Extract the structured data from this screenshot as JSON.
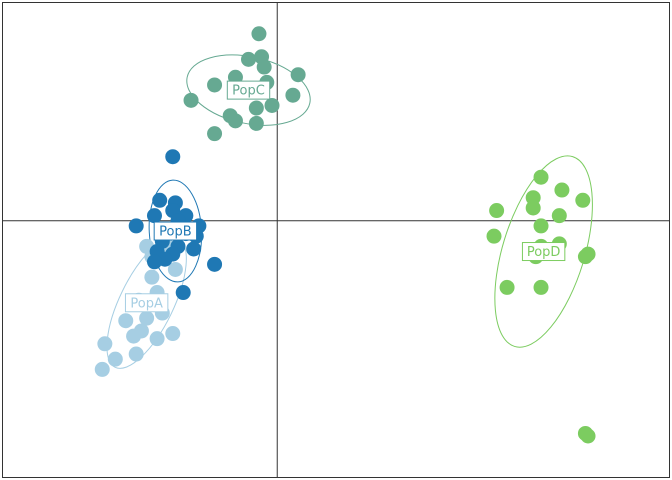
{
  "chart_data": {
    "type": "scatter",
    "title": "",
    "xlabel": "",
    "ylabel": "",
    "xlim": [
      -10.5,
      15.0
    ],
    "ylim": [
      -10.0,
      8.5
    ],
    "grid": false,
    "axes_lines_through_origin": true,
    "series": [
      {
        "name": "PopA",
        "color": "#a6cee3",
        "label_position": [
          -5.0,
          -3.2
        ],
        "ellipse": {
          "center": [
            -5.0,
            -3.2
          ],
          "rx": 2.75,
          "ry": 1.05,
          "angle_deg": 64
        },
        "points": [
          [
            -5.0,
            -1.0
          ],
          [
            -4.8,
            -1.4
          ],
          [
            -4.2,
            -1.0
          ],
          [
            -3.9,
            -1.9
          ],
          [
            -4.8,
            -2.2
          ],
          [
            -4.6,
            -2.8
          ],
          [
            -5.3,
            -3.1
          ],
          [
            -4.4,
            -3.6
          ],
          [
            -5.0,
            -3.8
          ],
          [
            -5.8,
            -3.9
          ],
          [
            -5.2,
            -4.3
          ],
          [
            -4.6,
            -4.6
          ],
          [
            -4.0,
            -4.4
          ],
          [
            -6.6,
            -4.8
          ],
          [
            -5.5,
            -4.5
          ],
          [
            -6.2,
            -5.4
          ],
          [
            -5.4,
            -5.2
          ],
          [
            -6.7,
            -5.8
          ]
        ]
      },
      {
        "name": "PopB",
        "color": "#1f78b4",
        "label_position": [
          -3.9,
          -0.4
        ],
        "ellipse": {
          "center": [
            -3.9,
            -0.4
          ],
          "rx": 1.95,
          "ry": 1.02,
          "angle_deg": -87
        },
        "points": [
          [
            -4.0,
            2.5
          ],
          [
            -4.5,
            0.8
          ],
          [
            -3.9,
            0.7
          ],
          [
            -4.0,
            0.4
          ],
          [
            -3.5,
            0.2
          ],
          [
            -4.7,
            0.2
          ],
          [
            -3.8,
            0.0
          ],
          [
            -5.4,
            -0.2
          ],
          [
            -3.0,
            -0.2
          ],
          [
            -4.4,
            -0.4
          ],
          [
            -3.5,
            -0.5
          ],
          [
            -3.1,
            -0.6
          ],
          [
            -4.4,
            -0.8
          ],
          [
            -3.8,
            -1.0
          ],
          [
            -4.0,
            -1.3
          ],
          [
            -4.6,
            -1.2
          ],
          [
            -3.2,
            -1.1
          ],
          [
            -4.3,
            -1.5
          ],
          [
            -4.7,
            -1.6
          ],
          [
            -2.4,
            -1.7
          ],
          [
            -3.6,
            -2.8
          ]
        ]
      },
      {
        "name": "PopC",
        "color": "#66a992",
        "label_position": [
          -1.1,
          5.1
        ],
        "ellipse": {
          "center": [
            -1.1,
            5.1
          ],
          "rx": 2.4,
          "ry": 1.3,
          "angle_deg": -12
        },
        "points": [
          [
            -0.7,
            7.3
          ],
          [
            -1.1,
            6.3
          ],
          [
            -0.6,
            6.4
          ],
          [
            -0.5,
            6.0
          ],
          [
            0.8,
            5.7
          ],
          [
            -1.6,
            5.6
          ],
          [
            -2.4,
            5.3
          ],
          [
            -0.4,
            5.4
          ],
          [
            0.6,
            4.9
          ],
          [
            -3.3,
            4.7
          ],
          [
            -0.2,
            4.5
          ],
          [
            -0.8,
            4.4
          ],
          [
            -1.8,
            4.1
          ],
          [
            -1.6,
            3.9
          ],
          [
            -0.8,
            3.8
          ],
          [
            -2.4,
            3.4
          ]
        ]
      },
      {
        "name": "PopD",
        "color": "#7ccc60",
        "label_position": [
          10.2,
          -1.2
        ],
        "ellipse": {
          "center": [
            10.2,
            -1.2
          ],
          "rx": 3.8,
          "ry": 1.6,
          "angle_deg": 73
        },
        "points": [
          [
            10.1,
            1.7
          ],
          [
            10.9,
            1.2
          ],
          [
            9.8,
            0.9
          ],
          [
            11.7,
            0.8
          ],
          [
            9.8,
            0.5
          ],
          [
            8.4,
            0.4
          ],
          [
            10.8,
            0.2
          ],
          [
            10.1,
            -0.2
          ],
          [
            8.3,
            -0.6
          ],
          [
            10.1,
            -1.0
          ],
          [
            10.8,
            -0.9
          ],
          [
            9.9,
            -1.4
          ],
          [
            11.9,
            -1.3
          ],
          [
            11.8,
            -1.4
          ],
          [
            8.8,
            -2.6
          ],
          [
            10.1,
            -2.6
          ],
          [
            11.8,
            -8.3
          ],
          [
            11.9,
            -8.4
          ]
        ]
      }
    ]
  }
}
